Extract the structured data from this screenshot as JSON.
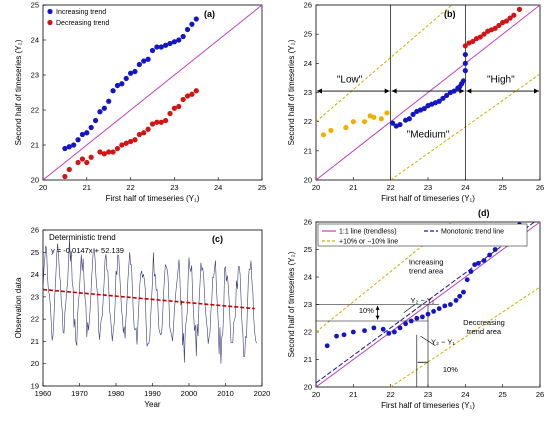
{
  "colors": {
    "increasing": "#1515c8",
    "decreasing": "#d41414",
    "low": "#f0b000",
    "diag": "#c040c0",
    "band": "#c8b400",
    "trend": "#c00000",
    "series": "#3a3a80",
    "monotonic": "#1a1a90"
  },
  "chart_data": [
    {
      "id": "a",
      "type": "scatter",
      "panel_label": "(a)",
      "xlabel": "First half of timeseries (Y₁)",
      "ylabel": "Second half of timeseries (Y₂)",
      "xlim": [
        20,
        25
      ],
      "ylim": [
        20,
        25
      ],
      "xticks": [
        "20",
        "21",
        "22",
        "23",
        "24",
        "25"
      ],
      "yticks": [
        "20",
        "21",
        "22",
        "23",
        "24",
        "25"
      ],
      "legend": [
        "Increasing trend",
        "Decreasing trend"
      ],
      "legend_position": "top-left",
      "diagonal": "1:1 line",
      "series": [
        {
          "name": "Increasing trend",
          "color_key": "increasing",
          "x": [
            20.5,
            20.6,
            20.7,
            20.8,
            20.9,
            21.0,
            21.1,
            21.2,
            21.3,
            21.4,
            21.5,
            21.6,
            21.7,
            21.8,
            21.9,
            22.0,
            22.1,
            22.2,
            22.3,
            22.4,
            22.5,
            22.6,
            22.7,
            22.8,
            22.9,
            23.0,
            23.1,
            23.2,
            23.3,
            23.4,
            23.5
          ],
          "y": [
            20.9,
            20.95,
            21.0,
            21.15,
            21.3,
            21.35,
            21.5,
            21.7,
            21.95,
            22.05,
            22.25,
            22.55,
            22.7,
            22.75,
            22.9,
            23.05,
            23.1,
            23.3,
            23.4,
            23.45,
            23.7,
            23.8,
            23.8,
            23.85,
            23.9,
            23.95,
            24.0,
            24.1,
            24.3,
            24.45,
            24.6
          ]
        },
        {
          "name": "Decreasing trend",
          "color_key": "decreasing",
          "x": [
            20.5,
            20.6,
            20.8,
            20.9,
            21.0,
            21.1,
            21.3,
            21.4,
            21.5,
            21.6,
            21.7,
            21.8,
            21.9,
            22.0,
            22.1,
            22.2,
            22.3,
            22.4,
            22.5,
            22.6,
            22.7,
            22.8,
            22.9,
            23.0,
            23.1,
            23.2,
            23.3,
            23.4,
            23.5
          ],
          "y": [
            20.1,
            20.3,
            20.5,
            20.6,
            20.5,
            20.65,
            20.8,
            20.75,
            20.8,
            20.8,
            20.9,
            21.0,
            21.05,
            21.1,
            21.15,
            21.3,
            21.35,
            21.45,
            21.6,
            21.65,
            21.65,
            21.7,
            21.9,
            22.05,
            22.1,
            22.3,
            22.4,
            22.45,
            22.55
          ]
        }
      ]
    },
    {
      "id": "b",
      "type": "scatter",
      "panel_label": "(b)",
      "xlabel": "First half of timeseries (Y₁)",
      "ylabel": "Second half of timeseries (Y₂)",
      "xlim": [
        20,
        26
      ],
      "ylim": [
        20,
        26
      ],
      "xticks": [
        "20",
        "21",
        "22",
        "23",
        "24",
        "25",
        "26"
      ],
      "yticks": [
        "20",
        "21",
        "22",
        "23",
        "24",
        "25",
        "26"
      ],
      "vlines": [
        22,
        24
      ],
      "band_pct": 10,
      "annotations": [
        {
          "text": "\"Low\"",
          "x": 20.9,
          "y": 23.35
        },
        {
          "text": "\"Medium\"",
          "x": 23.0,
          "y": 21.45
        },
        {
          "text": "\"High\"",
          "x": 24.95,
          "y": 23.35
        }
      ],
      "series": [
        {
          "name": "",
          "color_key": "low",
          "x": [
            20.2,
            20.4,
            20.8,
            21.0,
            21.3,
            21.45,
            21.55,
            21.75,
            21.9
          ],
          "y": [
            21.55,
            21.7,
            21.8,
            22.0,
            22.0,
            22.2,
            22.15,
            22.1,
            22.3
          ]
        },
        {
          "name": "",
          "color_key": "increasing",
          "x": [
            22.05,
            22.15,
            22.25,
            22.4,
            22.5,
            22.6,
            22.7,
            22.8,
            22.9,
            23.0,
            23.1,
            23.2,
            23.3,
            23.4,
            23.5,
            23.6,
            23.7,
            23.8,
            23.85,
            23.9,
            23.95,
            24.0,
            24.0,
            24.0
          ],
          "y": [
            21.95,
            21.85,
            21.9,
            22.05,
            22.1,
            22.25,
            22.35,
            22.4,
            22.45,
            22.55,
            22.6,
            22.65,
            22.7,
            22.8,
            22.9,
            23.0,
            23.05,
            23.15,
            23.2,
            23.3,
            23.4,
            23.75,
            24.0,
            24.3
          ]
        },
        {
          "name": "",
          "color_key": "decreasing",
          "x": [
            24.0,
            24.1,
            24.2,
            24.3,
            24.4,
            24.5,
            24.6,
            24.7,
            24.8,
            24.9,
            25.0,
            25.1,
            25.2,
            25.3,
            25.45
          ],
          "y": [
            24.6,
            24.7,
            24.75,
            24.85,
            24.9,
            25.0,
            25.1,
            25.15,
            25.2,
            25.3,
            25.4,
            25.45,
            25.55,
            25.65,
            25.85
          ]
        }
      ]
    },
    {
      "id": "c",
      "type": "line",
      "panel_label": "(c)",
      "xlabel": "Year",
      "ylabel": "Observation data",
      "xlim": [
        1960,
        2020
      ],
      "ylim": [
        19,
        26
      ],
      "xticks": [
        "1960",
        "1970",
        "1980",
        "1990",
        "2000",
        "2010",
        "2020"
      ],
      "yticks": [
        "19",
        "20",
        "21",
        "22",
        "23",
        "24",
        "25",
        "26"
      ],
      "title": "Deterministic trend",
      "equation": "y = -0.0147x + 52.139",
      "trend": {
        "slope": -0.0147,
        "intercept": 52.139
      },
      "series": [
        {
          "name": "",
          "color_key": "series",
          "mean": 23.3,
          "amplitude": 1.9,
          "period_years": 3.3,
          "step": 0.25
        }
      ]
    },
    {
      "id": "d",
      "type": "scatter",
      "panel_label": "(d)",
      "xlabel": "First half of timeseries (Y₁)",
      "ylabel": "Second half of timeseries (Y₂)",
      "xlim": [
        20,
        26
      ],
      "ylim": [
        20,
        26
      ],
      "xticks": [
        "20",
        "21",
        "22",
        "23",
        "24",
        "25",
        "26"
      ],
      "yticks": [
        "20",
        "21",
        "22",
        "23",
        "24",
        "25",
        "26"
      ],
      "legend": [
        "1:1 line (trendless)",
        "Monotonic trend line",
        "+10% or −10% line"
      ],
      "annotations": [
        {
          "text": "Increasing",
          "x": 22.95,
          "y": 24.45
        },
        {
          "text": "trend area",
          "x": 22.95,
          "y": 24.12
        },
        {
          "text": "Deccreasing",
          "x": 24.5,
          "y": 22.25
        },
        {
          "text": "trend area",
          "x": 24.5,
          "y": 21.92
        },
        {
          "text": "Y₂ − Y₁",
          "x": 22.85,
          "y": 23.05
        },
        {
          "text": "10%",
          "x": 21.35,
          "y": 22.7
        },
        {
          "text": "Y₂ − Y₁",
          "x": 23.4,
          "y": 21.55
        },
        {
          "text": "10%",
          "x": 23.6,
          "y": 20.55
        }
      ],
      "series": [
        {
          "name": "",
          "color_key": "increasing",
          "x": [
            20.3,
            20.55,
            20.75,
            21.0,
            21.3,
            21.55,
            21.8,
            21.95,
            22.1,
            22.25,
            22.4,
            22.55,
            22.7,
            22.85,
            23.0,
            23.15,
            23.3,
            23.45,
            23.6,
            23.75,
            23.85,
            23.95,
            24.05,
            24.15,
            24.25,
            24.35,
            24.5,
            24.65,
            24.8,
            24.95,
            25.1,
            25.25,
            25.45
          ],
          "y": [
            21.5,
            21.85,
            21.9,
            22.0,
            22.05,
            22.15,
            22.1,
            21.95,
            22.0,
            22.15,
            22.3,
            22.4,
            22.5,
            22.55,
            22.65,
            22.75,
            22.85,
            22.95,
            23.0,
            23.15,
            23.3,
            23.45,
            23.9,
            24.2,
            24.45,
            24.5,
            24.6,
            24.8,
            25.0,
            25.2,
            25.4,
            25.55,
            25.9
          ]
        }
      ]
    }
  ]
}
